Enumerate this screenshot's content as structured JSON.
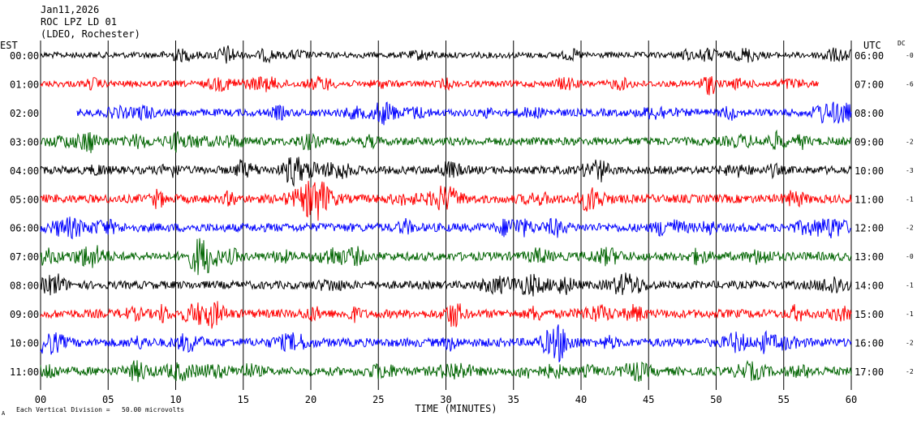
{
  "header": {
    "date": "Jan11,2026",
    "station": "ROC LPZ LD 01",
    "network": "(LDEO, Rochester)"
  },
  "left_axis_label": "EST",
  "right_axis_label": "UTC",
  "dc_label": "DC",
  "footer": {
    "division_note": "Each Vertical Division =   50.00 microvolts",
    "corner_mark": "A"
  },
  "chart_data": {
    "type": "line",
    "xlabel": "TIME (MINUTES)",
    "xlim": [
      0,
      60
    ],
    "x_ticks": [
      0,
      5,
      10,
      15,
      20,
      25,
      30,
      35,
      40,
      45,
      50,
      55,
      60
    ],
    "x_tick_labels": [
      "00",
      "05",
      "10",
      "15",
      "20",
      "25",
      "30",
      "35",
      "40",
      "45",
      "50",
      "55",
      "60"
    ],
    "grid": true,
    "trace_colors": [
      "#000000",
      "#ff0000",
      "#0000ff",
      "#006400"
    ],
    "rows": [
      {
        "est": "00:00",
        "utc": "06:00",
        "dc": "-0",
        "color": "#000000",
        "start_min": 0,
        "end_min": 60,
        "amp": 0.55
      },
      {
        "est": "01:00",
        "utc": "07:00",
        "dc": "-6",
        "color": "#ff0000",
        "start_min": 0,
        "end_min": 57.6,
        "amp": 0.6
      },
      {
        "est": "02:00",
        "utc": "08:00",
        "dc": "",
        "color": "#0000ff",
        "start_min": 2.7,
        "end_min": 60,
        "amp": 0.7
      },
      {
        "est": "03:00",
        "utc": "09:00",
        "dc": "-2",
        "color": "#006400",
        "start_min": 0,
        "end_min": 60,
        "amp": 0.75
      },
      {
        "est": "04:00",
        "utc": "10:00",
        "dc": "-3",
        "color": "#000000",
        "start_min": 0,
        "end_min": 60,
        "amp": 0.75
      },
      {
        "est": "05:00",
        "utc": "11:00",
        "dc": "-1",
        "color": "#ff0000",
        "start_min": 0,
        "end_min": 60,
        "amp": 0.8
      },
      {
        "est": "06:00",
        "utc": "12:00",
        "dc": "-2",
        "color": "#0000ff",
        "start_min": 0,
        "end_min": 60,
        "amp": 0.8
      },
      {
        "est": "07:00",
        "utc": "13:00",
        "dc": "-0",
        "color": "#006400",
        "start_min": 0,
        "end_min": 60,
        "amp": 0.8
      },
      {
        "est": "08:00",
        "utc": "14:00",
        "dc": "-1",
        "color": "#000000",
        "start_min": 0,
        "end_min": 60,
        "amp": 0.75
      },
      {
        "est": "09:00",
        "utc": "15:00",
        "dc": "-1",
        "color": "#ff0000",
        "start_min": 0,
        "end_min": 60,
        "amp": 0.8
      },
      {
        "est": "10:00",
        "utc": "16:00",
        "dc": "-2",
        "color": "#0000ff",
        "start_min": 0,
        "end_min": 60,
        "amp": 0.8
      },
      {
        "est": "11:00",
        "utc": "17:00",
        "dc": "-2",
        "color": "#006400",
        "start_min": 0,
        "end_min": 60,
        "amp": 0.8
      }
    ]
  }
}
